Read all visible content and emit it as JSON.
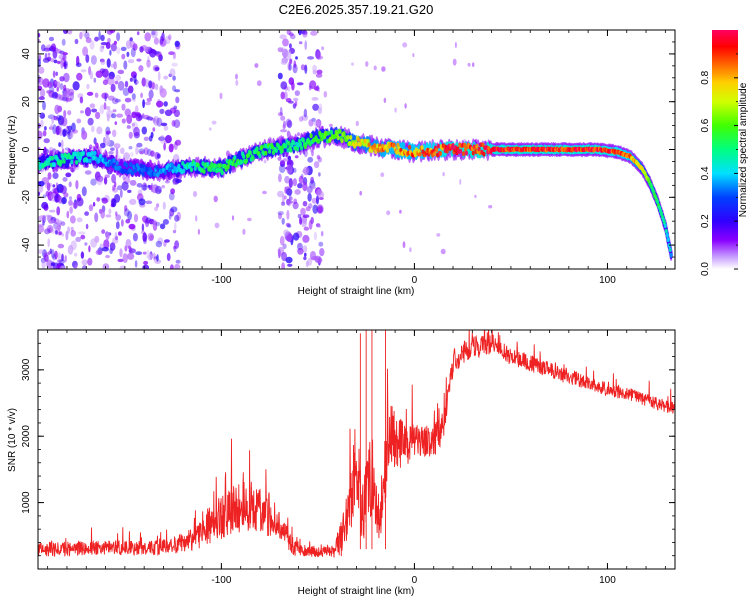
{
  "title": "C2E6.2025.357.19.21.G20",
  "chart_data": [
    {
      "type": "heatmap",
      "name": "spectrogram",
      "xlabel": "Height of straight line (km)",
      "ylabel": "Frequency (Hz)",
      "xlim": [
        -195,
        135
      ],
      "ylim": [
        -50,
        50
      ],
      "xticks": [
        -100,
        0,
        100
      ],
      "xtick_labels": [
        "-100",
        "0",
        "100"
      ],
      "yticks": [
        -40,
        -20,
        0,
        20,
        40
      ],
      "ytick_labels": [
        "-40",
        "-20",
        "0",
        "20",
        "40"
      ],
      "colorbar": {
        "label": "Normalized spectral amplitude",
        "range": [
          0,
          1
        ],
        "ticks": [
          0.0,
          0.2,
          0.4,
          0.6,
          0.8
        ],
        "tick_labels": [
          "0.0",
          "0.2",
          "0.4",
          "0.6",
          "0.8"
        ],
        "colors": [
          "#ffffff",
          "#8a00ff",
          "#0000ff",
          "#00e0ff",
          "#00ff40",
          "#ffff00",
          "#ff4000",
          "#ff0060"
        ]
      },
      "ridge": {
        "x": [
          -195,
          -180,
          -165,
          -150,
          -130,
          -115,
          -100,
          -90,
          -80,
          -70,
          -60,
          -50,
          -40,
          -30,
          -20,
          -10,
          0,
          20,
          40,
          60,
          80,
          95,
          105,
          112,
          118,
          122,
          126,
          130,
          133
        ],
        "freq": [
          -6,
          -4,
          -3,
          -8,
          -9,
          -7,
          -8,
          -4,
          -1,
          1,
          2,
          5,
          6,
          3,
          1,
          0,
          -1,
          0,
          0,
          0,
          0,
          0,
          -1,
          -3,
          -8,
          -14,
          -22,
          -32,
          -44
        ],
        "amplitude": [
          0.45,
          0.5,
          0.4,
          0.3,
          0.35,
          0.5,
          0.55,
          0.55,
          0.55,
          0.55,
          0.5,
          0.6,
          0.6,
          0.75,
          0.8,
          0.85,
          0.85,
          0.95,
          0.95,
          0.95,
          0.95,
          0.95,
          0.9,
          0.85,
          0.7,
          0.6,
          0.55,
          0.45,
          0.4
        ]
      },
      "noise_bands": [
        {
          "x": [
            -195,
            -122
          ],
          "amplitude": 0.2
        },
        {
          "x": [
            -70,
            -47
          ],
          "amplitude": 0.2
        }
      ]
    },
    {
      "type": "line",
      "name": "snr",
      "xlabel": "Height of straight line (km)",
      "ylabel": "SNR (10 * v/v)",
      "xlim": [
        -195,
        135
      ],
      "ylim": [
        0,
        3600
      ],
      "xticks": [
        -100,
        0,
        100
      ],
      "xtick_labels": [
        "-100",
        "0",
        "100"
      ],
      "yticks": [
        1000,
        2000,
        3000
      ],
      "ytick_labels": [
        "1000",
        "2000",
        "3000"
      ],
      "color": "#ee2222",
      "series": [
        {
          "name": "SNR",
          "x": [
            -195,
            -180,
            -160,
            -140,
            -125,
            -115,
            -105,
            -95,
            -85,
            -75,
            -68,
            -62,
            -55,
            -48,
            -42,
            -37,
            -33,
            -30,
            -27,
            -24,
            -21,
            -18,
            -15,
            -12,
            -8,
            -4,
            0,
            5,
            10,
            14,
            17,
            20,
            25,
            30,
            35,
            40,
            45,
            50,
            60,
            70,
            80,
            90,
            100,
            110,
            120,
            130,
            135
          ],
          "y": [
            300,
            300,
            330,
            310,
            350,
            450,
            700,
            900,
            950,
            820,
            550,
            320,
            270,
            260,
            270,
            500,
            1050,
            1650,
            800,
            1350,
            1400,
            700,
            1600,
            1950,
            1900,
            1850,
            1950,
            1900,
            1950,
            2050,
            2500,
            3100,
            3250,
            3350,
            3350,
            3400,
            3300,
            3200,
            3100,
            3000,
            2900,
            2800,
            2700,
            2650,
            2550,
            2450,
            2450
          ],
          "noise": [
            110,
            110,
            110,
            110,
            120,
            180,
            320,
            380,
            380,
            330,
            220,
            120,
            90,
            80,
            100,
            330,
            550,
            750,
            450,
            620,
            650,
            350,
            600,
            520,
            420,
            300,
            260,
            240,
            250,
            250,
            260,
            190,
            170,
            160,
            160,
            150,
            140,
            130,
            130,
            120,
            120,
            110,
            110,
            100,
            100,
            100,
            100
          ]
        }
      ]
    }
  ]
}
